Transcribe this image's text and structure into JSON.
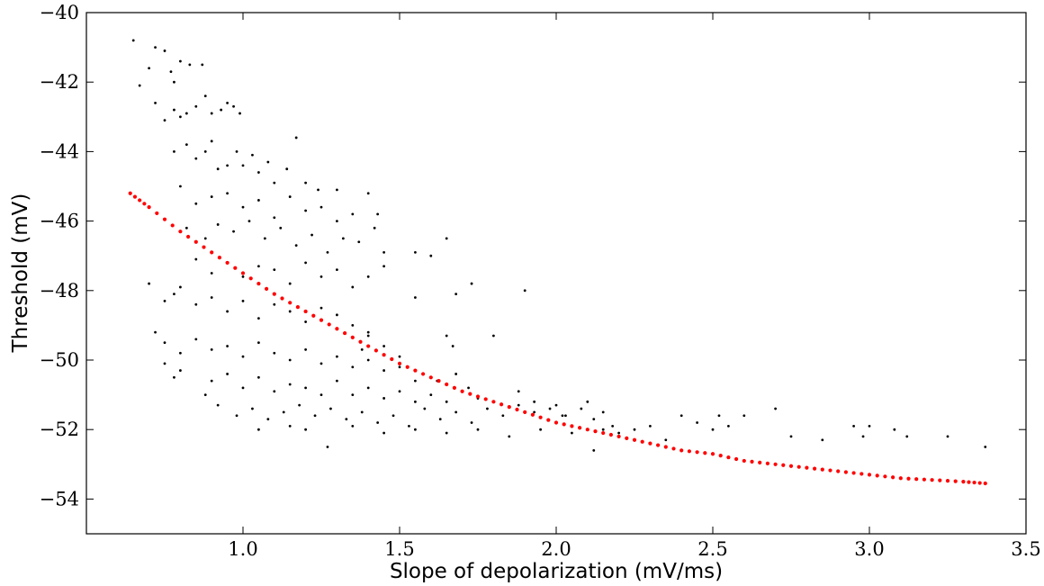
{
  "chart_data": {
    "type": "scatter",
    "title": "",
    "xlabel": "Slope of depolarization (mV/ms)",
    "ylabel": "Threshold (mV)",
    "xlim": [
      0.5,
      3.5
    ],
    "ylim": [
      -55,
      -40
    ],
    "xticks": [
      1.0,
      1.5,
      2.0,
      2.5,
      3.0,
      3.5
    ],
    "xtick_labels": [
      "1.0",
      "1.5",
      "2.0",
      "2.5",
      "3.0",
      "3.5"
    ],
    "yticks": [
      -40,
      -42,
      -44,
      -46,
      -48,
      -50,
      -52,
      -54
    ],
    "ytick_labels": [
      "−40",
      "−42",
      "−44",
      "−46",
      "−48",
      "−50",
      "−52",
      "−54"
    ],
    "grid": false,
    "legend": "none",
    "colors": {
      "points": "#000000",
      "fit": "#ff0000"
    },
    "series": [
      {
        "type": "scatter",
        "color": "#000000",
        "points": [
          [
            0.65,
            -40.8
          ],
          [
            0.67,
            -42.1
          ],
          [
            0.7,
            -41.6
          ],
          [
            0.72,
            -41.0
          ],
          [
            0.75,
            -41.1
          ],
          [
            0.77,
            -41.7
          ],
          [
            0.78,
            -42.0
          ],
          [
            0.8,
            -41.4
          ],
          [
            0.83,
            -41.5
          ],
          [
            0.87,
            -41.5
          ],
          [
            0.72,
            -42.6
          ],
          [
            0.75,
            -43.1
          ],
          [
            0.78,
            -42.8
          ],
          [
            0.8,
            -43.0
          ],
          [
            0.82,
            -42.9
          ],
          [
            0.85,
            -42.7
          ],
          [
            0.88,
            -42.4
          ],
          [
            0.9,
            -42.9
          ],
          [
            0.93,
            -42.8
          ],
          [
            0.95,
            -42.6
          ],
          [
            0.97,
            -42.7
          ],
          [
            0.99,
            -42.9
          ],
          [
            0.78,
            -44.0
          ],
          [
            0.82,
            -43.8
          ],
          [
            0.85,
            -44.2
          ],
          [
            0.88,
            -44.0
          ],
          [
            0.9,
            -43.7
          ],
          [
            0.92,
            -44.5
          ],
          [
            0.95,
            -44.4
          ],
          [
            0.98,
            -44.0
          ],
          [
            1.0,
            -44.4
          ],
          [
            1.03,
            -44.1
          ],
          [
            1.05,
            -44.6
          ],
          [
            1.08,
            -44.3
          ],
          [
            1.1,
            -44.9
          ],
          [
            1.14,
            -44.5
          ],
          [
            1.17,
            -43.6
          ],
          [
            1.2,
            -44.9
          ],
          [
            1.24,
            -45.1
          ],
          [
            1.3,
            -45.1
          ],
          [
            0.8,
            -45.0
          ],
          [
            0.85,
            -45.5
          ],
          [
            0.9,
            -45.3
          ],
          [
            0.95,
            -45.2
          ],
          [
            1.0,
            -45.6
          ],
          [
            1.05,
            -45.4
          ],
          [
            1.1,
            -45.9
          ],
          [
            1.15,
            -45.3
          ],
          [
            1.2,
            -45.7
          ],
          [
            1.25,
            -45.6
          ],
          [
            1.3,
            -46.0
          ],
          [
            1.35,
            -45.8
          ],
          [
            1.4,
            -45.2
          ],
          [
            1.43,
            -45.8
          ],
          [
            0.82,
            -46.2
          ],
          [
            0.88,
            -46.5
          ],
          [
            0.92,
            -46.1
          ],
          [
            0.97,
            -46.3
          ],
          [
            1.02,
            -46.0
          ],
          [
            1.07,
            -46.5
          ],
          [
            1.12,
            -46.2
          ],
          [
            1.17,
            -46.7
          ],
          [
            1.22,
            -46.4
          ],
          [
            1.27,
            -46.9
          ],
          [
            1.32,
            -46.5
          ],
          [
            1.37,
            -46.6
          ],
          [
            1.42,
            -46.2
          ],
          [
            1.45,
            -46.9
          ],
          [
            1.55,
            -46.9
          ],
          [
            1.6,
            -47.0
          ],
          [
            1.65,
            -46.5
          ],
          [
            0.85,
            -47.1
          ],
          [
            0.9,
            -47.5
          ],
          [
            0.95,
            -47.2
          ],
          [
            1.0,
            -47.6
          ],
          [
            1.05,
            -47.3
          ],
          [
            1.1,
            -47.4
          ],
          [
            1.15,
            -47.8
          ],
          [
            1.2,
            -47.2
          ],
          [
            1.25,
            -47.6
          ],
          [
            1.3,
            -47.4
          ],
          [
            1.35,
            -47.9
          ],
          [
            1.4,
            -47.6
          ],
          [
            1.45,
            -47.3
          ],
          [
            1.55,
            -48.2
          ],
          [
            1.68,
            -48.1
          ],
          [
            1.73,
            -47.8
          ],
          [
            1.9,
            -48.0
          ],
          [
            0.7,
            -47.8
          ],
          [
            0.75,
            -48.3
          ],
          [
            0.78,
            -48.1
          ],
          [
            0.8,
            -47.9
          ],
          [
            0.85,
            -48.4
          ],
          [
            0.9,
            -48.2
          ],
          [
            0.95,
            -48.6
          ],
          [
            1.0,
            -48.3
          ],
          [
            1.05,
            -48.8
          ],
          [
            1.1,
            -48.4
          ],
          [
            1.15,
            -48.6
          ],
          [
            1.2,
            -48.9
          ],
          [
            1.25,
            -48.5
          ],
          [
            1.3,
            -48.7
          ],
          [
            1.35,
            -49.0
          ],
          [
            1.4,
            -49.2
          ],
          [
            0.72,
            -49.2
          ],
          [
            0.75,
            -49.5
          ],
          [
            0.8,
            -49.8
          ],
          [
            0.85,
            -49.4
          ],
          [
            0.9,
            -49.7
          ],
          [
            0.95,
            -49.6
          ],
          [
            1.0,
            -49.9
          ],
          [
            1.05,
            -49.5
          ],
          [
            1.1,
            -49.8
          ],
          [
            1.15,
            -50.0
          ],
          [
            1.2,
            -49.7
          ],
          [
            1.25,
            -50.1
          ],
          [
            1.3,
            -49.9
          ],
          [
            1.35,
            -50.2
          ],
          [
            1.4,
            -50.0
          ],
          [
            1.45,
            -50.3
          ],
          [
            1.5,
            -50.2
          ],
          [
            1.55,
            -50.6
          ],
          [
            1.65,
            -49.3
          ],
          [
            1.67,
            -49.6
          ],
          [
            1.8,
            -49.3
          ],
          [
            0.75,
            -50.1
          ],
          [
            0.78,
            -50.5
          ],
          [
            0.8,
            -50.3
          ],
          [
            0.9,
            -50.6
          ],
          [
            0.95,
            -50.4
          ],
          [
            1.0,
            -50.8
          ],
          [
            1.05,
            -50.5
          ],
          [
            1.1,
            -50.9
          ],
          [
            1.15,
            -50.7
          ],
          [
            1.2,
            -50.8
          ],
          [
            1.25,
            -51.0
          ],
          [
            1.3,
            -50.6
          ],
          [
            1.35,
            -51.0
          ],
          [
            1.4,
            -50.8
          ],
          [
            1.45,
            -51.1
          ],
          [
            1.5,
            -50.9
          ],
          [
            1.55,
            -51.2
          ],
          [
            1.6,
            -51.0
          ],
          [
            1.65,
            -51.2
          ],
          [
            1.7,
            -50.9
          ],
          [
            1.75,
            -51.1
          ],
          [
            0.88,
            -51.0
          ],
          [
            0.92,
            -51.3
          ],
          [
            0.98,
            -51.6
          ],
          [
            1.03,
            -51.4
          ],
          [
            1.08,
            -51.7
          ],
          [
            1.13,
            -51.5
          ],
          [
            1.18,
            -51.3
          ],
          [
            1.23,
            -51.6
          ],
          [
            1.28,
            -51.4
          ],
          [
            1.33,
            -51.7
          ],
          [
            1.38,
            -51.5
          ],
          [
            1.43,
            -51.8
          ],
          [
            1.48,
            -51.6
          ],
          [
            1.53,
            -51.9
          ],
          [
            1.58,
            -51.4
          ],
          [
            1.63,
            -51.7
          ],
          [
            1.68,
            -51.5
          ],
          [
            1.73,
            -51.8
          ],
          [
            1.78,
            -51.4
          ],
          [
            1.83,
            -51.6
          ],
          [
            1.88,
            -51.3
          ],
          [
            1.93,
            -51.5
          ],
          [
            1.98,
            -51.4
          ],
          [
            2.03,
            -51.6
          ],
          [
            2.08,
            -51.4
          ],
          [
            2.12,
            -51.7
          ],
          [
            2.18,
            -51.9
          ],
          [
            1.05,
            -52.0
          ],
          [
            1.15,
            -51.9
          ],
          [
            1.2,
            -52.0
          ],
          [
            1.27,
            -52.5
          ],
          [
            1.35,
            -51.9
          ],
          [
            1.45,
            -52.1
          ],
          [
            1.55,
            -52.0
          ],
          [
            1.65,
            -52.1
          ],
          [
            1.75,
            -52.0
          ],
          [
            1.85,
            -52.2
          ],
          [
            1.95,
            -52.0
          ],
          [
            2.05,
            -52.1
          ],
          [
            2.12,
            -52.6
          ],
          [
            2.15,
            -52.0
          ],
          [
            2.2,
            -52.1
          ],
          [
            2.25,
            -52.0
          ],
          [
            2.3,
            -51.9
          ],
          [
            2.35,
            -52.3
          ],
          [
            2.4,
            -51.6
          ],
          [
            2.45,
            -51.8
          ],
          [
            2.5,
            -52.0
          ],
          [
            2.52,
            -51.6
          ],
          [
            2.55,
            -51.9
          ],
          [
            2.6,
            -51.6
          ],
          [
            2.7,
            -51.4
          ],
          [
            2.75,
            -52.2
          ],
          [
            2.85,
            -52.3
          ],
          [
            2.95,
            -51.9
          ],
          [
            2.98,
            -52.2
          ],
          [
            3.0,
            -51.9
          ],
          [
            3.08,
            -52.0
          ],
          [
            3.12,
            -52.2
          ],
          [
            3.25,
            -52.2
          ],
          [
            3.37,
            -52.5
          ],
          [
            1.88,
            -50.9
          ],
          [
            1.93,
            -51.2
          ],
          [
            2.0,
            -51.3
          ],
          [
            2.02,
            -51.6
          ],
          [
            2.1,
            -51.2
          ],
          [
            2.15,
            -51.5
          ],
          [
            1.62,
            -50.6
          ],
          [
            1.68,
            -50.4
          ],
          [
            1.72,
            -50.8
          ],
          [
            1.5,
            -49.9
          ],
          [
            1.45,
            -49.6
          ],
          [
            1.4,
            -49.3
          ],
          [
            1.38,
            -49.7
          ]
        ]
      },
      {
        "type": "fit",
        "color": "#ff0000",
        "points": [
          [
            0.64,
            -45.2
          ],
          [
            0.7,
            -45.6
          ],
          [
            0.8,
            -46.3
          ],
          [
            0.9,
            -46.9
          ],
          [
            1.0,
            -47.5
          ],
          [
            1.1,
            -48.1
          ],
          [
            1.2,
            -48.6
          ],
          [
            1.3,
            -49.1
          ],
          [
            1.4,
            -49.6
          ],
          [
            1.5,
            -50.1
          ],
          [
            1.6,
            -50.5
          ],
          [
            1.7,
            -50.9
          ],
          [
            1.8,
            -51.2
          ],
          [
            1.9,
            -51.5
          ],
          [
            2.0,
            -51.8
          ],
          [
            2.1,
            -52.0
          ],
          [
            2.2,
            -52.2
          ],
          [
            2.3,
            -52.4
          ],
          [
            2.4,
            -52.6
          ],
          [
            2.5,
            -52.7
          ],
          [
            2.6,
            -52.9
          ],
          [
            2.7,
            -53.0
          ],
          [
            2.8,
            -53.1
          ],
          [
            2.9,
            -53.2
          ],
          [
            3.0,
            -53.3
          ],
          [
            3.1,
            -53.4
          ],
          [
            3.2,
            -53.45
          ],
          [
            3.3,
            -53.5
          ],
          [
            3.37,
            -53.55
          ]
        ]
      }
    ]
  }
}
